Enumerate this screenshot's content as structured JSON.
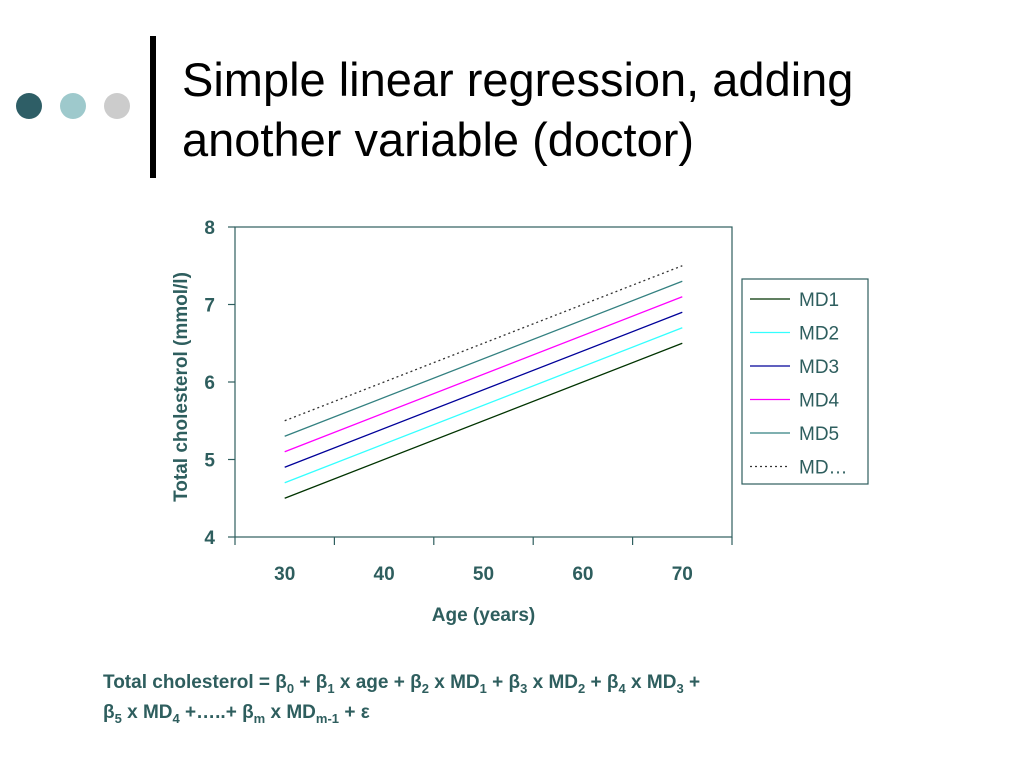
{
  "slide": {
    "title_line1": "Simple linear regression, adding",
    "title_line2": "another variable (doctor)",
    "bullet_colors": [
      "#2e5e66",
      "#9ec9cc",
      "#cccccc"
    ],
    "accent_color": "#2e5e5e"
  },
  "chart_data": {
    "type": "line",
    "title": "",
    "xlabel": "Age (years)",
    "ylabel": "Total cholesterol (mmol/l)",
    "xlim": [
      25,
      75
    ],
    "ylim": [
      4,
      8
    ],
    "xticks": [
      30,
      40,
      50,
      60,
      70
    ],
    "yticks": [
      4,
      5,
      6,
      7,
      8
    ],
    "grid": false,
    "legend_position": "right",
    "series": [
      {
        "name": "MD1",
        "x": [
          30,
          70
        ],
        "y": [
          4.5,
          6.5
        ],
        "color": "#003300",
        "dash": "solid"
      },
      {
        "name": "MD2",
        "x": [
          30,
          70
        ],
        "y": [
          4.7,
          6.7
        ],
        "color": "#33ffff",
        "dash": "solid"
      },
      {
        "name": "MD3",
        "x": [
          30,
          70
        ],
        "y": [
          4.9,
          6.9
        ],
        "color": "#000099",
        "dash": "solid"
      },
      {
        "name": "MD4",
        "x": [
          30,
          70
        ],
        "y": [
          5.1,
          7.1
        ],
        "color": "#ff00ff",
        "dash": "solid"
      },
      {
        "name": "MD5",
        "x": [
          30,
          70
        ],
        "y": [
          5.3,
          7.3
        ],
        "color": "#338080",
        "dash": "solid"
      },
      {
        "name": "MD…",
        "x": [
          30,
          70
        ],
        "y": [
          5.5,
          7.5
        ],
        "color": "#333333",
        "dash": "dotted"
      }
    ]
  },
  "formula": {
    "prefix": "Total cholesterol = β",
    "b0": "0",
    "t1": " + β",
    "b1": "1",
    "t2": " x age + β",
    "b2": "2",
    "t3": " x MD",
    "m1": "1",
    "t4": " + β",
    "b3": "3",
    "t5": " x MD",
    "m2": "2",
    "t6": " + β",
    "b4": "4",
    "t7": " x MD",
    "m3": "3",
    "t8": " + ",
    "l2_beta": "β",
    "b5": "5",
    "t9": " x MD",
    "m4": "4",
    "t10": " +…..+ β",
    "bm": "m",
    "t11": " x MD",
    "mm1": "m-1",
    "t12": " + ε"
  }
}
